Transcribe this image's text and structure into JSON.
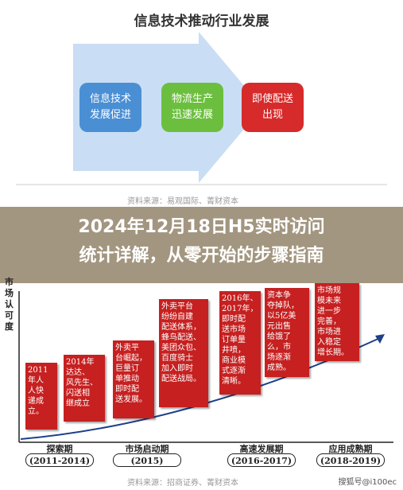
{
  "top_diagram": {
    "title": "信息技术推动行业发展",
    "boxes": [
      {
        "text": "信息技术\n发展促进",
        "color": "#4a8fd4"
      },
      {
        "text": "物流生产\n迅速发展",
        "color": "#6cbf3e"
      },
      {
        "text": "即使配送\n出现",
        "color": "#d72a2a"
      }
    ],
    "source": "资料来源：易观国际、菁财资本"
  },
  "banner": {
    "line1": "2024年12月18日H5实时访问",
    "line2": "统计详解，从零开始的步骤指南"
  },
  "bottom_diagram": {
    "y_axis_label": "市场认可度",
    "cards": [
      {
        "text": "2011\n年人\n人快\n递成\n立。"
      },
      {
        "text": "2014年\n达达、\n风先生、\n闪送相\n继成立"
      },
      {
        "text": "外卖平\n台崛起，\n巨量订\n单推动\n即时配\n送发展。"
      },
      {
        "text": "外卖平台\n纷纷自建\n配送体系，\n蜂鸟配送、\n美团众包、\n百度骑士\n加入即时\n配送战局。"
      },
      {
        "text": "2016年、\n2017年，\n即时配\n送市场\n订单量\n井喷，\n商业模\n式逐渐\n清晰。"
      },
      {
        "text": "资本争\n夺掉队，\n以5亿美\n元出售\n给饿了\n么，市\n场逐渐\n成熟。"
      },
      {
        "text": "市场规\n模未来\n进一步\n完善，\n市场进\n入稳定\n增长期。"
      }
    ],
    "periods": [
      {
        "name": "探索期",
        "range": "(2011-2014)"
      },
      {
        "name": "市场启动期",
        "range": "(2015)"
      },
      {
        "name": "高速发展期",
        "range": "(2016-2017)"
      },
      {
        "name": "应用成熟期",
        "range": "(2018-2019)"
      }
    ],
    "source": "资料来源：招商证券、菁财资本"
  },
  "watermark": "搜狐号@i100ec"
}
